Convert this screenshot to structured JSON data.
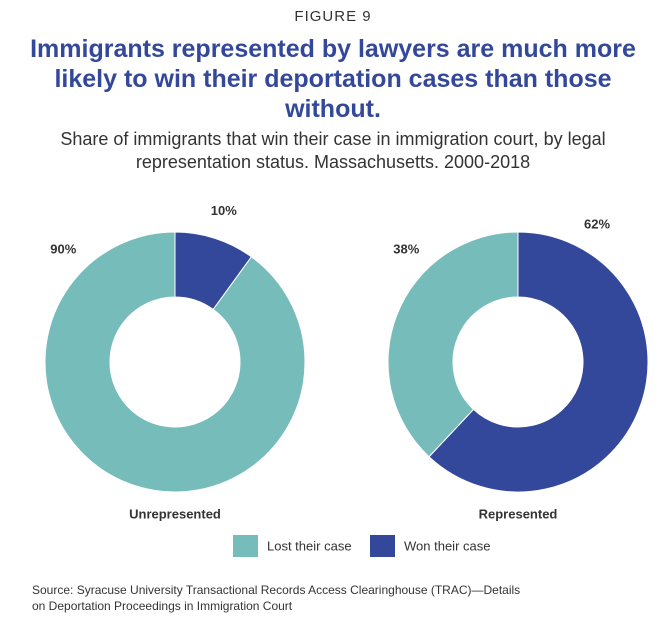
{
  "figure_label": "FIGURE 9",
  "title": "Immigrants represented by lawyers are much more likely to win their deportation cases than those without.",
  "subtitle": "Share of immigrants that win their case in immigration court, by legal representation status. Massachusetts. 2000-2018",
  "source": "Source: Syracuse University Transactional Records Access Clearinghouse (TRAC)—Details on Deportation Proceedings in Immigration Court",
  "chart_data": {
    "type": "pie",
    "donut": true,
    "categories": [
      "Unrepresented",
      "Represented"
    ],
    "series": [
      {
        "name": "Lost their case",
        "color": "#76bcbb",
        "values": [
          90,
          38
        ],
        "value_labels": [
          "90%",
          "38%"
        ]
      },
      {
        "name": "Won their case",
        "color": "#33489a",
        "values": [
          10,
          62
        ],
        "value_labels": [
          "10%",
          "62%"
        ]
      }
    ]
  }
}
